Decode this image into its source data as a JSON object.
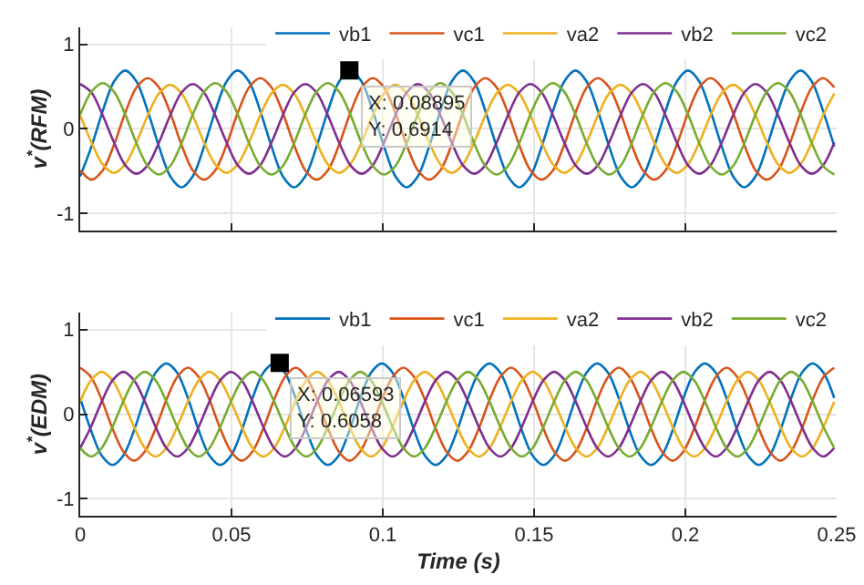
{
  "chart_data": [
    {
      "type": "line",
      "ylabel": "v$^{*}$(RFM)",
      "xlim": [
        0,
        0.25
      ],
      "xticks": [
        0,
        0.05,
        0.1,
        0.15,
        0.2,
        0.25
      ],
      "ylim": [
        -1.2,
        1.2
      ],
      "yticks": [
        -1,
        0,
        1
      ],
      "grid": true,
      "legend": "top right",
      "tick_labels": "y",
      "marker": "none",
      "line_style": "solid",
      "x": [
        0,
        0.00372,
        0.00744,
        0.01116,
        0.01488,
        0.0186,
        0.02232,
        0.02604,
        0.02976,
        0.03348,
        0.0372,
        0.04092,
        0.04464,
        0.04836,
        0.05208,
        0.0558,
        0.05952,
        0.06324,
        0.06696,
        0.07068,
        0.0744,
        0.07812,
        0.08184,
        0.08556,
        0.08928,
        0.093,
        0.09672,
        0.10044,
        0.10416,
        0.10788,
        0.1116,
        0.11532,
        0.11904,
        0.12276,
        0.12648,
        0.1302,
        0.13392,
        0.13764,
        0.14136,
        0.14508,
        0.1488,
        0.15252,
        0.15624,
        0.15996,
        0.16368,
        0.1674,
        0.17112,
        0.17484,
        0.17856,
        0.18228,
        0.186,
        0.18972,
        0.19344,
        0.19716,
        0.20088,
        0.2046,
        0.20832,
        0.21204,
        0.21576,
        0.21948,
        0.2232,
        0.22692,
        0.23064,
        0.23436,
        0.23808,
        0.2418,
        0.24552,
        0.24924
      ],
      "series": [
        {
          "name": "vb1",
          "color": "#0072bd",
          "values": [
            -0.56,
            -0.21,
            0.21,
            0.56,
            0.69,
            0.56,
            0.21,
            -0.21,
            -0.56,
            -0.69,
            -0.56,
            -0.21,
            0.21,
            0.56,
            0.69,
            0.56,
            0.21,
            -0.21,
            -0.56,
            -0.69,
            -0.56,
            -0.21,
            0.21,
            0.56,
            0.69,
            0.56,
            0.21,
            -0.21,
            -0.56,
            -0.69,
            -0.56,
            -0.21,
            0.21,
            0.56,
            0.69,
            0.56,
            0.21,
            -0.21,
            -0.56,
            -0.69,
            -0.56,
            -0.21,
            0.21,
            0.56,
            0.69,
            0.56,
            0.21,
            -0.21,
            -0.56,
            -0.69,
            -0.56,
            -0.21,
            0.21,
            0.56,
            0.69,
            0.56,
            0.21,
            -0.21,
            -0.56,
            -0.69,
            -0.56,
            -0.21,
            0.21,
            0.56,
            0.69,
            0.56,
            0.21,
            -0.21
          ]
        },
        {
          "name": "vc1",
          "color": "#d95319",
          "values": [
            -0.49,
            -0.6,
            -0.49,
            -0.19,
            0.19,
            0.49,
            0.6,
            0.49,
            0.19,
            -0.19,
            -0.49,
            -0.6,
            -0.49,
            -0.19,
            0.19,
            0.49,
            0.6,
            0.49,
            0.19,
            -0.19,
            -0.49,
            -0.6,
            -0.49,
            -0.19,
            0.19,
            0.49,
            0.6,
            0.49,
            0.19,
            -0.19,
            -0.49,
            -0.6,
            -0.49,
            -0.19,
            0.19,
            0.49,
            0.6,
            0.49,
            0.19,
            -0.19,
            -0.49,
            -0.6,
            -0.49,
            -0.19,
            0.19,
            0.49,
            0.6,
            0.49,
            0.19,
            -0.19,
            -0.49,
            -0.6,
            -0.49,
            -0.19,
            0.19,
            0.49,
            0.6,
            0.49,
            0.19,
            -0.19,
            -0.49,
            -0.6,
            -0.49,
            -0.19,
            0.19,
            0.49,
            0.6,
            0.49
          ]
        },
        {
          "name": "va2",
          "color": "#edb120",
          "values": [
            0.16,
            -0.16,
            -0.42,
            -0.52,
            -0.42,
            -0.16,
            0.16,
            0.42,
            0.52,
            0.42,
            0.16,
            -0.16,
            -0.42,
            -0.52,
            -0.42,
            -0.16,
            0.16,
            0.42,
            0.52,
            0.42,
            0.16,
            -0.16,
            -0.42,
            -0.52,
            -0.42,
            -0.16,
            0.16,
            0.42,
            0.52,
            0.42,
            0.16,
            -0.16,
            -0.42,
            -0.52,
            -0.42,
            -0.16,
            0.16,
            0.42,
            0.52,
            0.42,
            0.16,
            -0.16,
            -0.42,
            -0.52,
            -0.42,
            -0.16,
            0.16,
            0.42,
            0.52,
            0.42,
            0.16,
            -0.16,
            -0.42,
            -0.52,
            -0.42,
            -0.16,
            0.16,
            0.42,
            0.52,
            0.42,
            0.16,
            -0.16,
            -0.42,
            -0.52,
            -0.42,
            -0.16,
            0.16,
            0.42
          ]
        },
        {
          "name": "vb2",
          "color": "#7e2f8e",
          "values": [
            0.53,
            0.43,
            0.16,
            -0.16,
            -0.43,
            -0.53,
            -0.43,
            -0.16,
            0.16,
            0.43,
            0.53,
            0.43,
            0.16,
            -0.16,
            -0.43,
            -0.53,
            -0.43,
            -0.16,
            0.16,
            0.43,
            0.53,
            0.43,
            0.16,
            -0.16,
            -0.43,
            -0.53,
            -0.43,
            -0.16,
            0.16,
            0.43,
            0.53,
            0.43,
            0.16,
            -0.16,
            -0.43,
            -0.53,
            -0.43,
            -0.16,
            0.16,
            0.43,
            0.53,
            0.43,
            0.16,
            -0.16,
            -0.43,
            -0.53,
            -0.43,
            -0.16,
            0.16,
            0.43,
            0.53,
            0.43,
            0.16,
            -0.16,
            -0.43,
            -0.53,
            -0.43,
            -0.16,
            0.16,
            0.43,
            0.53,
            0.43,
            0.16,
            -0.16,
            -0.43,
            -0.53,
            -0.43,
            -0.16
          ]
        },
        {
          "name": "vc2",
          "color": "#77ac30",
          "values": [
            0.17,
            0.44,
            0.54,
            0.44,
            0.17,
            -0.17,
            -0.44,
            -0.54,
            -0.44,
            -0.17,
            0.17,
            0.44,
            0.54,
            0.44,
            0.17,
            -0.17,
            -0.44,
            -0.54,
            -0.44,
            -0.17,
            0.17,
            0.44,
            0.54,
            0.44,
            0.17,
            -0.17,
            -0.44,
            -0.54,
            -0.44,
            -0.17,
            0.17,
            0.44,
            0.54,
            0.44,
            0.17,
            -0.17,
            -0.44,
            -0.54,
            -0.44,
            -0.17,
            0.17,
            0.44,
            0.54,
            0.44,
            0.17,
            -0.17,
            -0.44,
            -0.54,
            -0.44,
            -0.17,
            0.17,
            0.44,
            0.54,
            0.44,
            0.17,
            -0.17,
            -0.44,
            -0.54,
            -0.44,
            -0.17,
            0.17,
            0.44,
            0.54,
            0.44,
            0.17,
            -0.17,
            -0.44,
            -0.54
          ]
        }
      ],
      "annotations": [
        {
          "text": "X: 0.08895\nY: 0.6914",
          "x": 0.08895,
          "y": 0.6914
        }
      ]
    },
    {
      "type": "line",
      "xlabel": "Time (s)",
      "ylabel": "v$^{*}$(EDM)",
      "xlim": [
        0,
        0.25
      ],
      "xticks": [
        0,
        0.05,
        0.1,
        0.15,
        0.2,
        0.25
      ],
      "ylim": [
        -1.2,
        1.2
      ],
      "yticks": [
        -1,
        0,
        1
      ],
      "grid": true,
      "legend": "top right",
      "marker": "none",
      "line_style": "solid",
      "x": [
        0,
        0.00356,
        0.00712,
        0.01068,
        0.01424,
        0.0178,
        0.02136,
        0.02492,
        0.02848,
        0.03204,
        0.0356,
        0.03916,
        0.04272,
        0.04628,
        0.04984,
        0.0534,
        0.05696,
        0.06052,
        0.06408,
        0.06764,
        0.0712,
        0.07476,
        0.07832,
        0.08188,
        0.08544,
        0.089,
        0.09256,
        0.09612,
        0.09968,
        0.10324,
        0.1068,
        0.11036,
        0.11392,
        0.11748,
        0.12104,
        0.1246,
        0.12816,
        0.13172,
        0.13528,
        0.13884,
        0.1424,
        0.14596,
        0.14952,
        0.15308,
        0.15664,
        0.1602,
        0.16376,
        0.16732,
        0.17088,
        0.17444,
        0.178,
        0.18156,
        0.18512,
        0.18868,
        0.19224,
        0.1958,
        0.19936,
        0.20292,
        0.20648,
        0.21004,
        0.2136,
        0.21716,
        0.22072,
        0.22428,
        0.22784,
        0.2314,
        0.23496,
        0.23852,
        0.24208,
        0.24564,
        0.2492
      ],
      "series": [
        {
          "name": "vb1",
          "color": "#0072bd",
          "values": [
            0.19,
            -0.19,
            -0.49,
            -0.6,
            -0.49,
            -0.19,
            0.19,
            0.49,
            0.6,
            0.49,
            0.19,
            -0.19,
            -0.49,
            -0.6,
            -0.49,
            -0.19,
            0.19,
            0.49,
            0.6,
            0.49,
            0.19,
            -0.19,
            -0.49,
            -0.6,
            -0.49,
            -0.19,
            0.19,
            0.49,
            0.6,
            0.49,
            0.19,
            -0.19,
            -0.49,
            -0.6,
            -0.49,
            -0.19,
            0.19,
            0.49,
            0.6,
            0.49,
            0.19,
            -0.19,
            -0.49,
            -0.6,
            -0.49,
            -0.19,
            0.19,
            0.49,
            0.6,
            0.49,
            0.19,
            -0.19,
            -0.49,
            -0.6,
            -0.49,
            -0.19,
            0.19,
            0.49,
            0.6,
            0.49,
            0.19,
            -0.19,
            -0.49,
            -0.6,
            -0.49,
            -0.19,
            0.19,
            0.49,
            0.6,
            0.49,
            0.19
          ]
        },
        {
          "name": "vc1",
          "color": "#d95319",
          "values": [
            0.55,
            0.44,
            0.17,
            -0.17,
            -0.44,
            -0.55,
            -0.44,
            -0.17,
            0.17,
            0.44,
            0.55,
            0.44,
            0.17,
            -0.17,
            -0.44,
            -0.55,
            -0.44,
            -0.17,
            0.17,
            0.44,
            0.55,
            0.44,
            0.17,
            -0.17,
            -0.44,
            -0.55,
            -0.44,
            -0.17,
            0.17,
            0.44,
            0.55,
            0.44,
            0.17,
            -0.17,
            -0.44,
            -0.55,
            -0.44,
            -0.17,
            0.17,
            0.44,
            0.55,
            0.44,
            0.17,
            -0.17,
            -0.44,
            -0.55,
            -0.44,
            -0.17,
            0.17,
            0.44,
            0.55,
            0.44,
            0.17,
            -0.17,
            -0.44,
            -0.55,
            -0.44,
            -0.17,
            0.17,
            0.44,
            0.55,
            0.44,
            0.17,
            -0.17,
            -0.44,
            -0.55,
            -0.44,
            -0.17,
            0.17,
            0.44,
            0.55
          ]
        },
        {
          "name": "va2",
          "color": "#edb120",
          "values": [
            0.15,
            0.4,
            0.5,
            0.4,
            0.15,
            -0.15,
            -0.4,
            -0.5,
            -0.4,
            -0.15,
            0.15,
            0.4,
            0.5,
            0.4,
            0.15,
            -0.15,
            -0.4,
            -0.5,
            -0.4,
            -0.15,
            0.15,
            0.4,
            0.5,
            0.4,
            0.15,
            -0.15,
            -0.4,
            -0.5,
            -0.4,
            -0.15,
            0.15,
            0.4,
            0.5,
            0.4,
            0.15,
            -0.15,
            -0.4,
            -0.5,
            -0.4,
            -0.15,
            0.15,
            0.4,
            0.5,
            0.4,
            0.15,
            -0.15,
            -0.4,
            -0.5,
            -0.4,
            -0.15,
            0.15,
            0.4,
            0.5,
            0.4,
            0.15,
            -0.15,
            -0.4,
            -0.5,
            -0.4,
            -0.15,
            0.15,
            0.4,
            0.5,
            0.4,
            0.15,
            -0.15,
            -0.4,
            -0.5,
            -0.4,
            -0.15,
            0.15
          ]
        },
        {
          "name": "vb2",
          "color": "#7e2f8e",
          "values": [
            -0.4,
            -0.15,
            0.15,
            0.4,
            0.5,
            0.4,
            0.15,
            -0.15,
            -0.4,
            -0.5,
            -0.4,
            -0.15,
            0.15,
            0.4,
            0.5,
            0.4,
            0.15,
            -0.15,
            -0.4,
            -0.5,
            -0.4,
            -0.15,
            0.15,
            0.4,
            0.5,
            0.4,
            0.15,
            -0.15,
            -0.4,
            -0.5,
            -0.4,
            -0.15,
            0.15,
            0.4,
            0.5,
            0.4,
            0.15,
            -0.15,
            -0.4,
            -0.5,
            -0.4,
            -0.15,
            0.15,
            0.4,
            0.5,
            0.4,
            0.15,
            -0.15,
            -0.4,
            -0.5,
            -0.4,
            -0.15,
            0.15,
            0.4,
            0.5,
            0.4,
            0.15,
            -0.15,
            -0.4,
            -0.5,
            -0.4,
            -0.15,
            0.15,
            0.4,
            0.5,
            0.4,
            0.15,
            -0.15,
            -0.4,
            -0.5,
            -0.4
          ]
        },
        {
          "name": "vc2",
          "color": "#77ac30",
          "values": [
            -0.4,
            -0.5,
            -0.4,
            -0.15,
            0.15,
            0.4,
            0.5,
            0.4,
            0.15,
            -0.15,
            -0.4,
            -0.5,
            -0.4,
            -0.15,
            0.15,
            0.4,
            0.5,
            0.4,
            0.15,
            -0.15,
            -0.4,
            -0.5,
            -0.4,
            -0.15,
            0.15,
            0.4,
            0.5,
            0.4,
            0.15,
            -0.15,
            -0.4,
            -0.5,
            -0.4,
            -0.15,
            0.15,
            0.4,
            0.5,
            0.4,
            0.15,
            -0.15,
            -0.4,
            -0.5,
            -0.4,
            -0.15,
            0.15,
            0.4,
            0.5,
            0.4,
            0.15,
            -0.15,
            -0.4,
            -0.5,
            -0.4,
            -0.15,
            0.15,
            0.4,
            0.5,
            0.4,
            0.15,
            -0.15,
            -0.4,
            -0.5,
            -0.4,
            -0.15,
            0.15,
            0.4,
            0.5,
            0.4,
            0.15,
            -0.15,
            -0.4
          ]
        }
      ],
      "annotations": [
        {
          "text": "X: 0.06593\nY: 0.6058",
          "x": 0.06593,
          "y": 0.6058
        }
      ]
    }
  ]
}
